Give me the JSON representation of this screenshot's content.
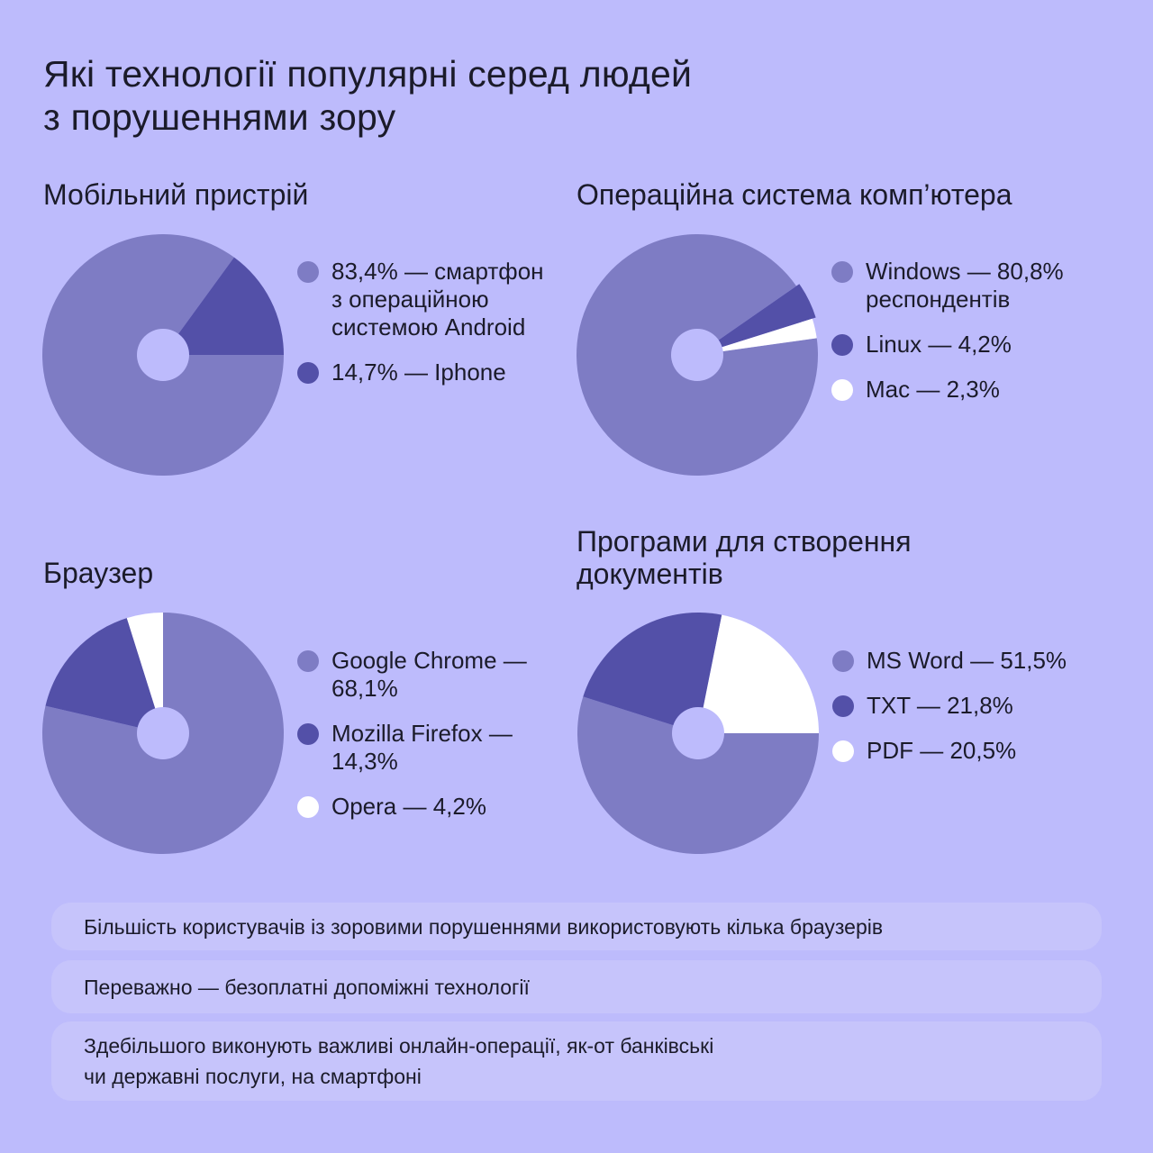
{
  "title": {
    "line1": "Які технології популярні серед людей",
    "line2": "з порушеннями зору"
  },
  "colors": {
    "background": "#bdbbfc",
    "light_slice": "#7e7cc4",
    "dark_slice": "#5350a8",
    "white_slice": "#ffffff",
    "hole": "#bdbbfc",
    "note_bg": "#c6c4fb"
  },
  "chart_data": [
    {
      "type": "pie",
      "title": "Мобільний пристрій",
      "series": [
        {
          "name": "83,4% — смартфон з операційною системою Android",
          "legend_lines": [
            "83,4% — смартфон",
            "з операційною",
            "системою Android"
          ],
          "value": 83.4,
          "color": "#7e7cc4"
        },
        {
          "name": "14,7% — Iphone",
          "legend_lines": [
            "14,7% — Iphone"
          ],
          "value": 14.7,
          "color": "#5350a8"
        }
      ]
    },
    {
      "type": "pie",
      "title": "Операційна система комп’ютера",
      "series": [
        {
          "name": "Windows — 80,8% респондентів",
          "legend_lines": [
            "Windows — 80,8%",
            "респондентів"
          ],
          "value": 80.8,
          "color": "#7e7cc4"
        },
        {
          "name": "Linux — 4,2%",
          "legend_lines": [
            "Linux — 4,2%"
          ],
          "value": 4.2,
          "color": "#5350a8"
        },
        {
          "name": "Mac — 2,3%",
          "legend_lines": [
            "Mac — 2,3%"
          ],
          "value": 2.3,
          "color": "#ffffff"
        }
      ]
    },
    {
      "type": "pie",
      "title": "Браузер",
      "series": [
        {
          "name": "Google Chrome — 68,1%",
          "legend_lines": [
            "Google Chrome —",
            "68,1%"
          ],
          "value": 68.1,
          "color": "#7e7cc4"
        },
        {
          "name": "Mozilla Firefox — 14,3%",
          "legend_lines": [
            "Mozilla Firefox —",
            "14,3%"
          ],
          "value": 14.3,
          "color": "#5350a8"
        },
        {
          "name": "Opera — 4,2%",
          "legend_lines": [
            "Opera — 4,2%"
          ],
          "value": 4.2,
          "color": "#ffffff"
        }
      ]
    },
    {
      "type": "pie",
      "title": "Програми для створення документів",
      "title_lines": [
        "Програми для створення",
        "документів"
      ],
      "series": [
        {
          "name": "MS Word — 51,5%",
          "legend_lines": [
            "MS Word — 51,5%"
          ],
          "value": 51.5,
          "color": "#7e7cc4"
        },
        {
          "name": "TXT — 21,8%",
          "legend_lines": [
            "TXT — 21,8%"
          ],
          "value": 21.8,
          "color": "#5350a8"
        },
        {
          "name": "PDF — 20,5%",
          "legend_lines": [
            "PDF — 20,5%"
          ],
          "value": 20.5,
          "color": "#ffffff"
        }
      ]
    }
  ],
  "notes": [
    {
      "lines": [
        "Більшість користувачів із зоровими порушеннями використовують кілька браузерів"
      ]
    },
    {
      "lines": [
        "Переважно — безоплатні допоміжні технології"
      ]
    },
    {
      "lines": [
        "Здебільшого виконують важливі онлайн-операції, як-от банківські",
        "чи державні послуги, на смартфоні"
      ]
    }
  ]
}
